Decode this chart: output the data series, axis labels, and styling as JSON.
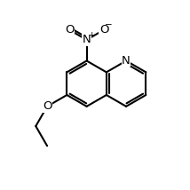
{
  "background_color": "#ffffff",
  "line_color": "#000000",
  "line_width": 1.5,
  "font_size": 9.5,
  "figsize": [
    2.14,
    2.14
  ],
  "dpi": 100,
  "xlim": [
    0,
    10
  ],
  "ylim": [
    0,
    10
  ]
}
